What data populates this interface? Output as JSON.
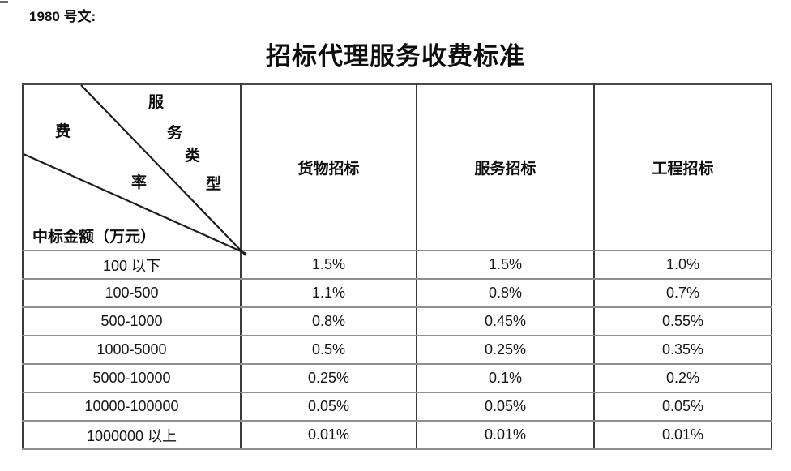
{
  "page": {
    "doc_number_label": "1980 号文:",
    "title": "招标代理服务收费标准"
  },
  "table": {
    "corner": {
      "fee_chars": [
        "费",
        "率"
      ],
      "type_chars": [
        "服",
        "务",
        "类",
        "型"
      ],
      "amount_axis_label": "中标金额（万元）"
    },
    "columns": [
      "货物招标",
      "服务招标",
      "工程招标"
    ],
    "rows": [
      {
        "label": "100 以下",
        "values": [
          "1.5%",
          "1.5%",
          "1.0%"
        ]
      },
      {
        "label": "100-500",
        "values": [
          "1.1%",
          "0.8%",
          "0.7%"
        ]
      },
      {
        "label": "500-1000",
        "values": [
          "0.8%",
          "0.45%",
          "0.55%"
        ]
      },
      {
        "label": "1000-5000",
        "values": [
          "0.5%",
          "0.25%",
          "0.35%"
        ]
      },
      {
        "label": "5000-10000",
        "values": [
          "0.25%",
          "0.1%",
          "0.2%"
        ]
      },
      {
        "label": "10000-100000",
        "values": [
          "0.05%",
          "0.05%",
          "0.05%"
        ]
      },
      {
        "label": "1000000 以上",
        "values": [
          "0.01%",
          "0.01%",
          "0.01%"
        ]
      }
    ]
  },
  "colors": {
    "text": "#161616",
    "vertical_rule": "#3a3a3a",
    "horizontal_rule": "#8f8f8f",
    "diagonal_line": "#1c1c1c"
  }
}
